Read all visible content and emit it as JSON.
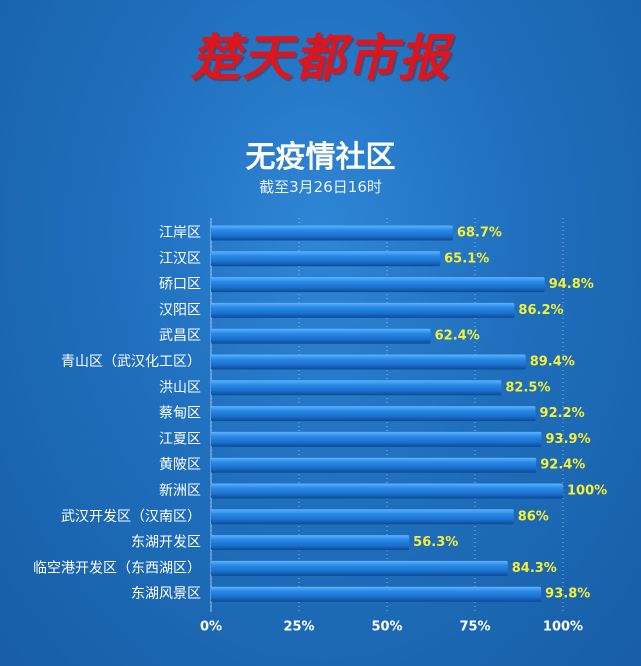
{
  "logo_text": "楚天都市报",
  "chart_data": {
    "type": "bar",
    "orientation": "horizontal",
    "title": "无疫情社区",
    "subtitle": "截至3月26日16时",
    "categories": [
      "江岸区",
      "江汉区",
      "硚口区",
      "汉阳区",
      "武昌区",
      "青山区（武汉化工区）",
      "洪山区",
      "蔡甸区",
      "江夏区",
      "黄陂区",
      "新洲区",
      "武汉开发区（汉南区）",
      "东湖开发区",
      "临空港开发区（东西湖区）",
      "东湖风景区"
    ],
    "values": [
      68.7,
      65.1,
      94.8,
      86.2,
      62.4,
      89.4,
      82.5,
      92.2,
      93.9,
      92.4,
      100,
      86,
      56.3,
      84.3,
      93.8
    ],
    "value_labels": [
      "68.7%",
      "65.1%",
      "94.8%",
      "86.2%",
      "62.4%",
      "89.4%",
      "82.5%",
      "92.2%",
      "93.9%",
      "92.4%",
      "100%",
      "86%",
      "56.3%",
      "84.3%",
      "93.8%"
    ],
    "xticks": [
      0,
      25,
      50,
      75,
      100
    ],
    "xtick_labels": [
      "0%",
      "25%",
      "50%",
      "75%",
      "100%"
    ],
    "xlim": [
      0,
      100
    ],
    "grid": "vertical dotted",
    "colors": {
      "bar": "#1f77d4",
      "value_label": "#f4ef3a"
    }
  }
}
